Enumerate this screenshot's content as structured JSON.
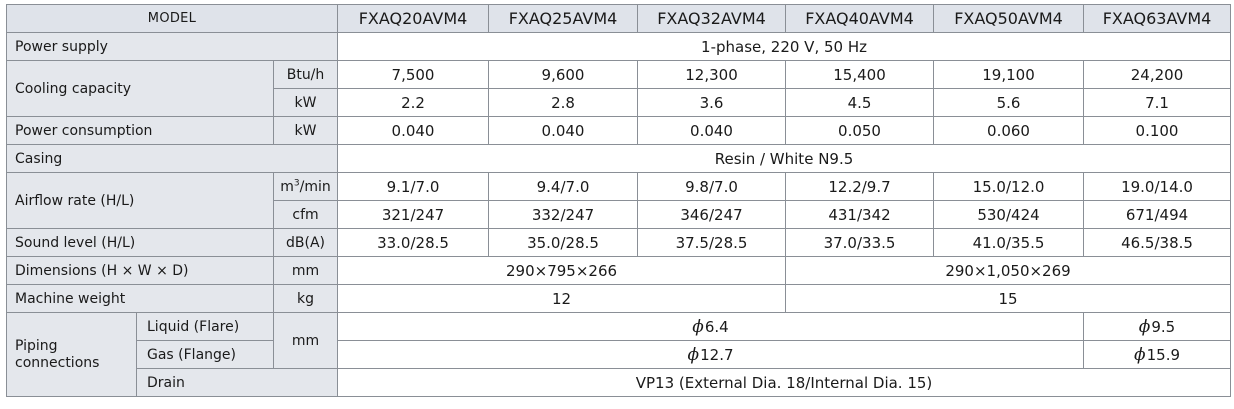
{
  "table": {
    "header": {
      "model_label": "MODEL",
      "models": [
        "FXAQ20AVM4",
        "FXAQ25AVM4",
        "FXAQ32AVM4",
        "FXAQ40AVM4",
        "FXAQ50AVM4",
        "FXAQ63AVM4"
      ]
    },
    "power_supply": {
      "label": "Power supply",
      "value": "1-phase, 220 V, 50 Hz"
    },
    "cooling_capacity": {
      "label": "Cooling capacity",
      "btu": {
        "unit": "Btu/h",
        "values": [
          "7,500",
          "9,600",
          "12,300",
          "15,400",
          "19,100",
          "24,200"
        ]
      },
      "kw": {
        "unit": "kW",
        "values": [
          "2.2",
          "2.8",
          "3.6",
          "4.5",
          "5.6",
          "7.1"
        ]
      }
    },
    "power_consumption": {
      "label": "Power consumption",
      "unit": "kW",
      "values": [
        "0.040",
        "0.040",
        "0.040",
        "0.050",
        "0.060",
        "0.100"
      ]
    },
    "casing": {
      "label": "Casing",
      "value": "Resin / White N9.5"
    },
    "airflow": {
      "label": "Airflow rate (H/L)",
      "m3": {
        "unit_base": "m",
        "unit_sup": "3",
        "unit_tail": "/min",
        "values": [
          "9.1/7.0",
          "9.4/7.0",
          "9.8/7.0",
          "12.2/9.7",
          "15.0/12.0",
          "19.0/14.0"
        ]
      },
      "cfm": {
        "unit": "cfm",
        "values": [
          "321/247",
          "332/247",
          "346/247",
          "431/342",
          "530/424",
          "671/494"
        ]
      }
    },
    "sound": {
      "label": "Sound level (H/L)",
      "unit": "dB(A)",
      "values": [
        "33.0/28.5",
        "35.0/28.5",
        "37.5/28.5",
        "37.0/33.5",
        "41.0/35.5",
        "46.5/38.5"
      ]
    },
    "dimensions": {
      "label": "Dimensions (H × W × D)",
      "unit": "mm",
      "group_a": "290×795×266",
      "group_b": "290×1,050×269"
    },
    "weight": {
      "label": "Machine weight",
      "unit": "kg",
      "group_a": "12",
      "group_b": "15"
    },
    "piping": {
      "label": "Piping connections",
      "unit": "mm",
      "phi": "ϕ",
      "liquid": {
        "label": "Liquid (Flare)",
        "main": "6.4",
        "last": "9.5"
      },
      "gas": {
        "label": "Gas (Flange)",
        "main": "12.7",
        "last": "15.9"
      },
      "drain": {
        "label": "Drain",
        "value": "VP13 (External Dia. 18/Internal Dia. 15)"
      }
    }
  }
}
